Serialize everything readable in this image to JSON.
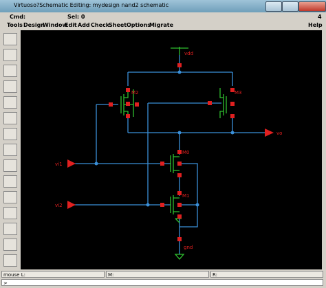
{
  "window": {
    "title": "Virtuoso?Schematic Editing: mydesign nand2 schematic"
  },
  "status": {
    "cmd": "Cmd:",
    "sel": "Sel: 0",
    "number": "4"
  },
  "menu": [
    "Tools",
    "Design",
    "Window",
    "Edit",
    "Add",
    "Check",
    "Sheet",
    "Options",
    "Migrate",
    "Help"
  ],
  "schematic": {
    "labels": {
      "vdd": "vdd",
      "m2": "M2",
      "m3": "M3",
      "vo": "vo",
      "vi1": "vi1",
      "vi2": "vi2",
      "m0": "M0",
      "m1": "M1",
      "gnd": "gnd"
    }
  },
  "footer": {
    "mouse_l": "mouse L:",
    "mouse_m": "M:",
    "mouse_r": "R:",
    "prompt": ">"
  }
}
